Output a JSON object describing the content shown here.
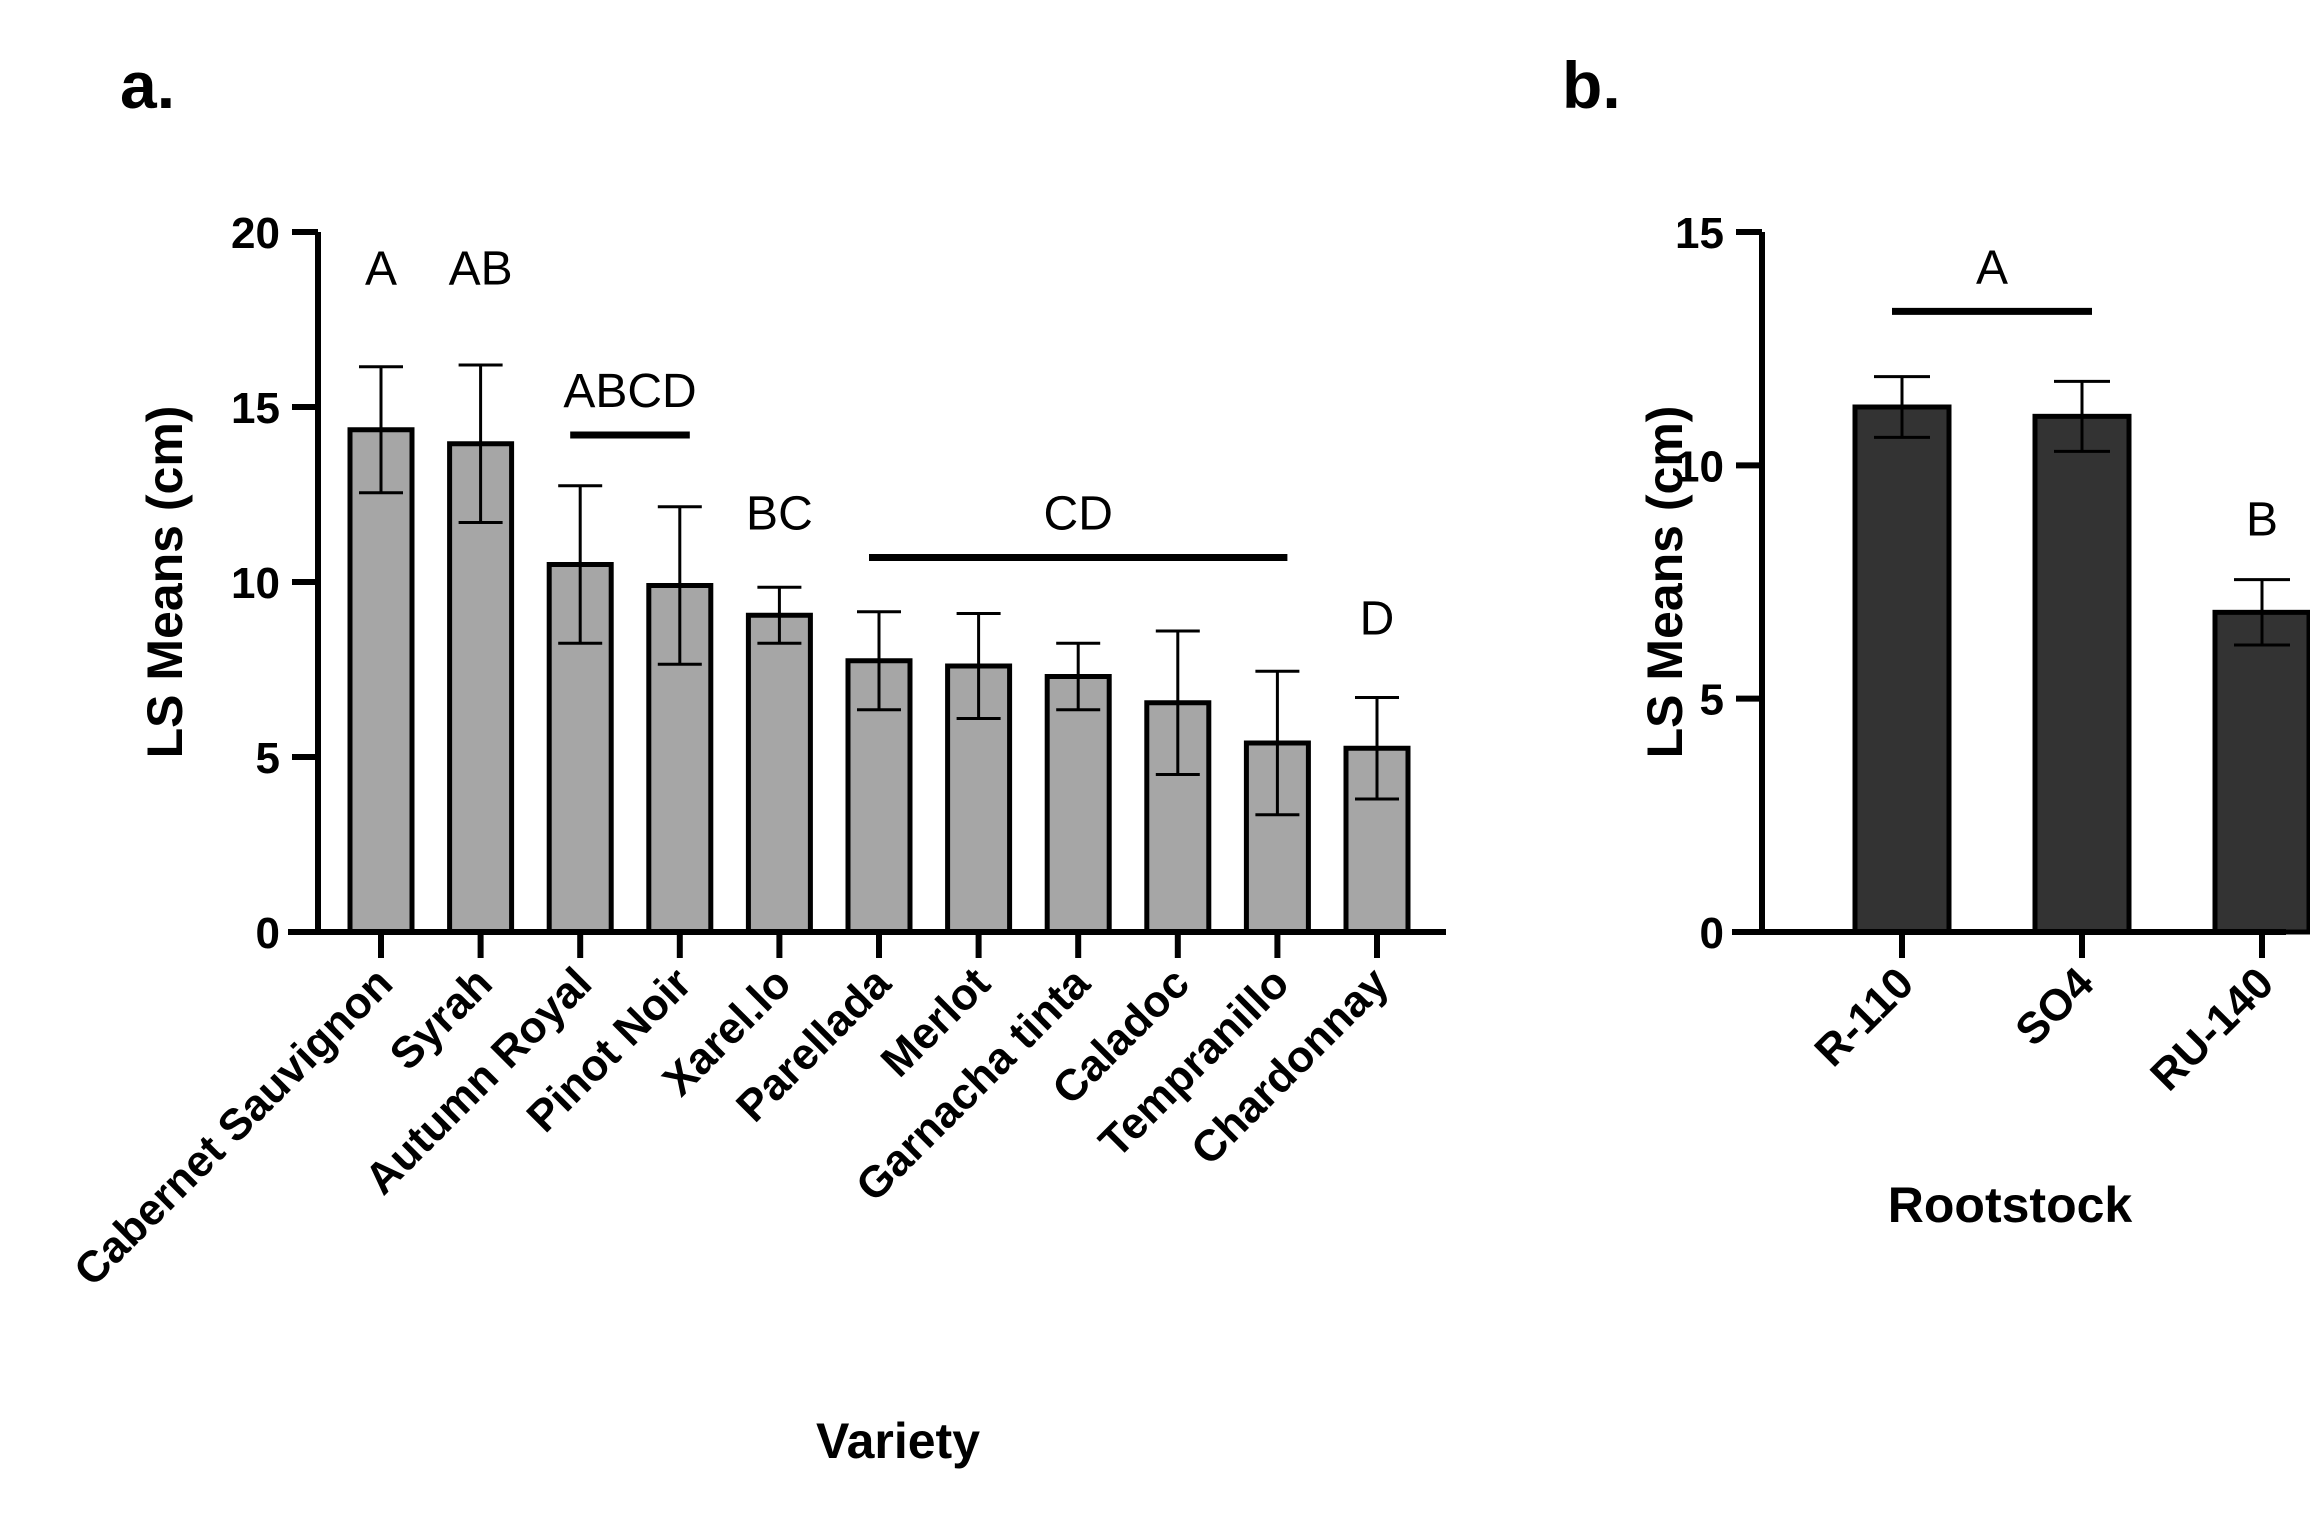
{
  "chart_data": [
    {
      "panel": "a.",
      "type": "bar",
      "xlabel": "Variety",
      "ylabel": "LS Means (cm)",
      "ylim": [
        0,
        20
      ],
      "yticks": [
        "0",
        "5",
        "10",
        "15",
        "20"
      ],
      "bar_color": "#a6a6a6",
      "categories": [
        "Cabernet Sauvignon",
        "Syrah",
        "Autumn Royal",
        "Pinot Noir",
        "Xarel.lo",
        "Parellada",
        "Merlot",
        "Garnacha tinta",
        "Caladoc",
        "Tempranillo",
        "Chardonnay"
      ],
      "values": [
        14.35,
        13.95,
        10.5,
        9.9,
        9.05,
        7.75,
        7.6,
        7.3,
        6.55,
        5.4,
        5.25
      ],
      "errors": [
        1.8,
        2.25,
        2.25,
        2.25,
        0.8,
        1.4,
        1.5,
        0.95,
        2.05,
        2.05,
        1.45
      ],
      "groups": [
        {
          "label": "A",
          "from": 0,
          "to": 0,
          "y": 18.5
        },
        {
          "label": "AB",
          "from": 1,
          "to": 1,
          "y": 18.5
        },
        {
          "label": "ABCD",
          "from": 2,
          "to": 3,
          "y": 14.2
        },
        {
          "label": "BC",
          "from": 4,
          "to": 4,
          "y": 11.5
        },
        {
          "label": "CD",
          "from": 5,
          "to": 9,
          "y": 10.7
        },
        {
          "label": "D",
          "from": 10,
          "to": 10,
          "y": 8.5
        }
      ]
    },
    {
      "panel": "b.",
      "type": "bar",
      "xlabel": "Rootstock",
      "ylabel": "LS Means (cm)",
      "ylim": [
        0,
        15
      ],
      "yticks": [
        "0",
        "5",
        "10",
        "15"
      ],
      "bar_color": "#333333",
      "categories": [
        "R-110",
        "SO4",
        "RU-140"
      ],
      "values": [
        11.25,
        11.05,
        6.85
      ],
      "errors": [
        0.65,
        0.75,
        0.7
      ],
      "groups": [
        {
          "label": "A",
          "from": 0,
          "to": 1,
          "y": 13.3
        },
        {
          "label": "B",
          "from": 2,
          "to": 2,
          "y": 8.5
        }
      ]
    }
  ]
}
